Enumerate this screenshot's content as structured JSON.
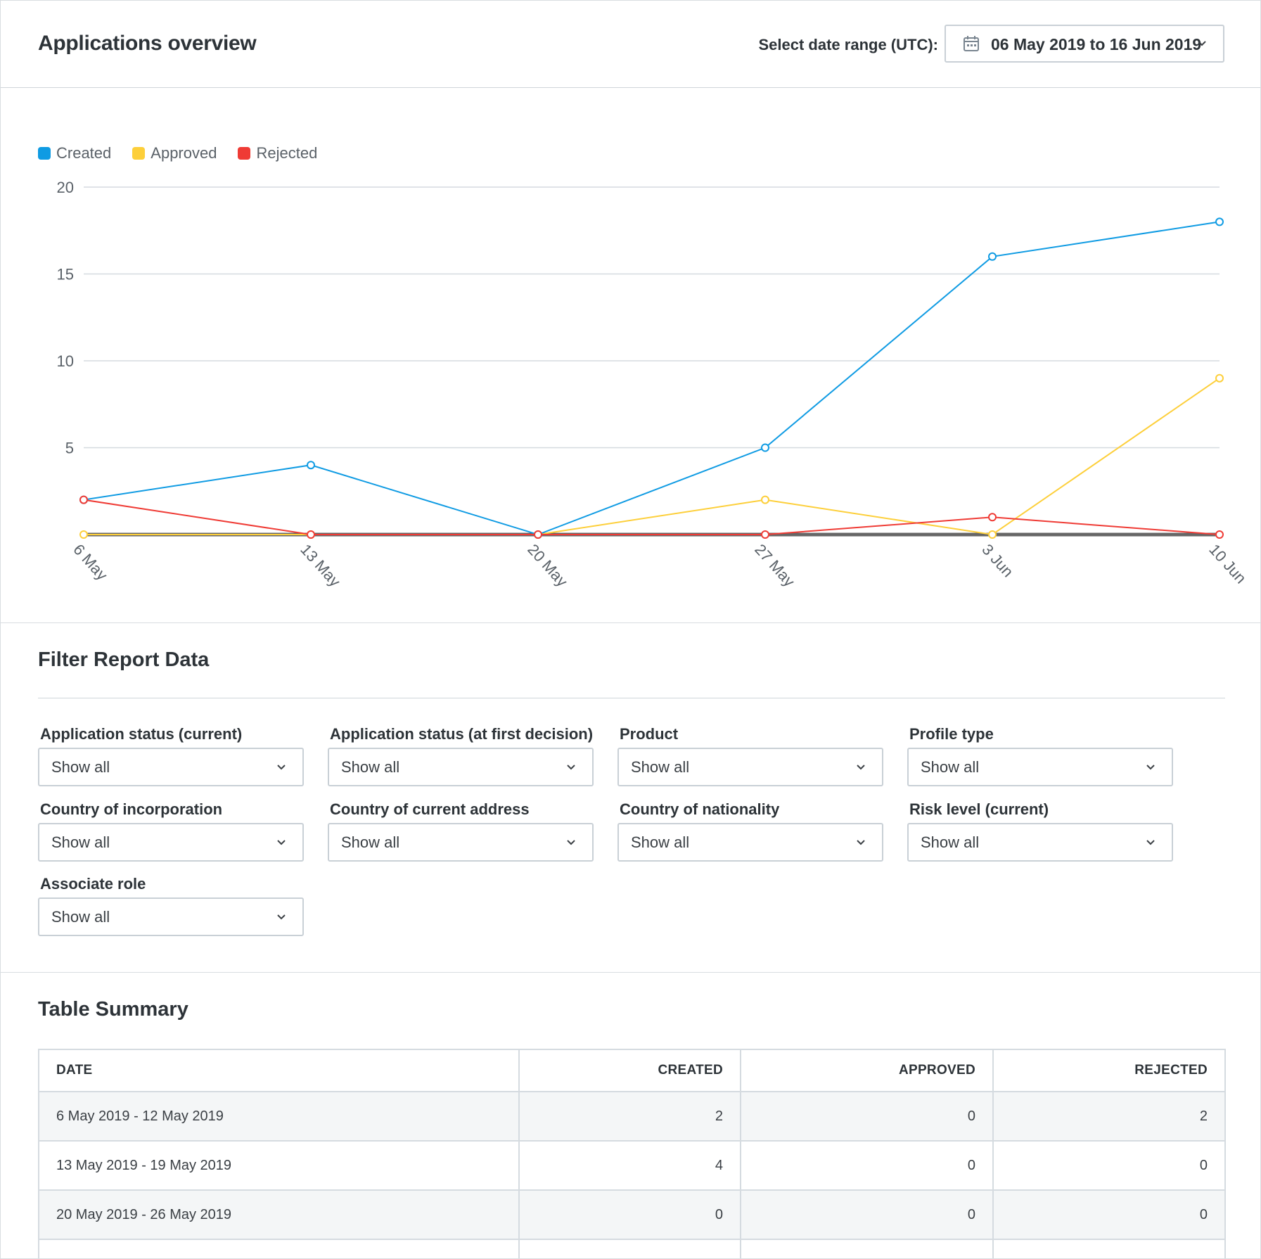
{
  "header": {
    "title": "Applications overview",
    "range_label": "Select date range (UTC):",
    "range_value": "06 May 2019 to 16 Jun 2019",
    "calendar_icon": "calendar-icon",
    "chevron_icon": "chevron-down-icon"
  },
  "chart_data": {
    "type": "line",
    "categories": [
      "6 May",
      "13 May",
      "20 May",
      "27 May",
      "3 Jun",
      "10 Jun"
    ],
    "yticks": [
      5,
      10,
      15,
      20
    ],
    "ylim": [
      0,
      20
    ],
    "legend_position": "top-left",
    "grid": true,
    "series": [
      {
        "name": "Created",
        "color": "#0f9be3",
        "values": [
          2,
          4,
          0,
          5,
          16,
          18
        ]
      },
      {
        "name": "Approved",
        "color": "#fdcf3a",
        "values": [
          0,
          0,
          0,
          2,
          0,
          9
        ]
      },
      {
        "name": "Rejected",
        "color": "#ef3b35",
        "values": [
          2,
          0,
          0,
          0,
          1,
          0
        ]
      }
    ]
  },
  "filters": {
    "title": "Filter Report Data",
    "items": [
      {
        "label": "Application status (current)",
        "value": "Show all"
      },
      {
        "label": "Application status (at first decision)",
        "value": "Show all"
      },
      {
        "label": "Product",
        "value": "Show all"
      },
      {
        "label": "Profile type",
        "value": "Show all"
      },
      {
        "label": "Country of incorporation",
        "value": "Show all"
      },
      {
        "label": "Country of current address",
        "value": "Show all"
      },
      {
        "label": "Country of nationality",
        "value": "Show all"
      },
      {
        "label": "Risk level (current)",
        "value": "Show all"
      },
      {
        "label": "Associate role",
        "value": "Show all"
      }
    ]
  },
  "table": {
    "title": "Table Summary",
    "headers": [
      "DATE",
      "CREATED",
      "APPROVED",
      "REJECTED"
    ],
    "rows": [
      [
        "6 May 2019 - 12 May 2019",
        "2",
        "0",
        "2"
      ],
      [
        "13 May 2019 - 19 May 2019",
        "4",
        "0",
        "0"
      ],
      [
        "20 May 2019 - 26 May 2019",
        "0",
        "0",
        "0"
      ],
      [
        "",
        "",
        "",
        ""
      ]
    ]
  }
}
